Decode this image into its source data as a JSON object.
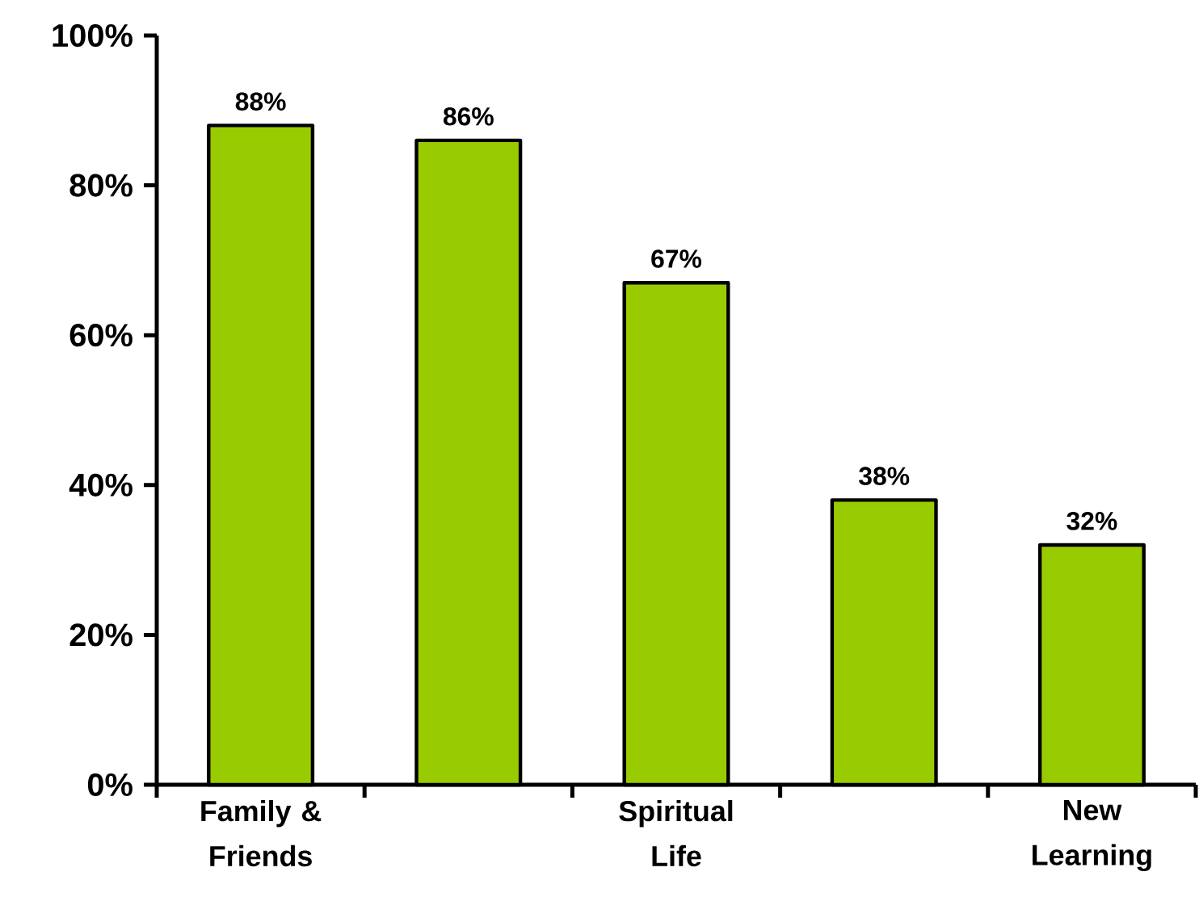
{
  "chart_data": {
    "type": "bar",
    "categories": [
      "Family & Friends",
      null,
      "Spiritual Life",
      null,
      "New Learning"
    ],
    "values": [
      88,
      86,
      67,
      38,
      32
    ],
    "value_labels": [
      "88%",
      "86%",
      "67%",
      "38%",
      "32%"
    ],
    "color": "#99cc00",
    "ylim": [
      0,
      100
    ],
    "yticks": [
      {
        "value": 0,
        "label": "0%"
      },
      {
        "value": 20,
        "label": "20%"
      },
      {
        "value": 40,
        "label": "40%"
      },
      {
        "value": 60,
        "label": "60%"
      },
      {
        "value": 80,
        "label": "80%"
      },
      {
        "value": 100,
        "label": "100%"
      }
    ]
  }
}
